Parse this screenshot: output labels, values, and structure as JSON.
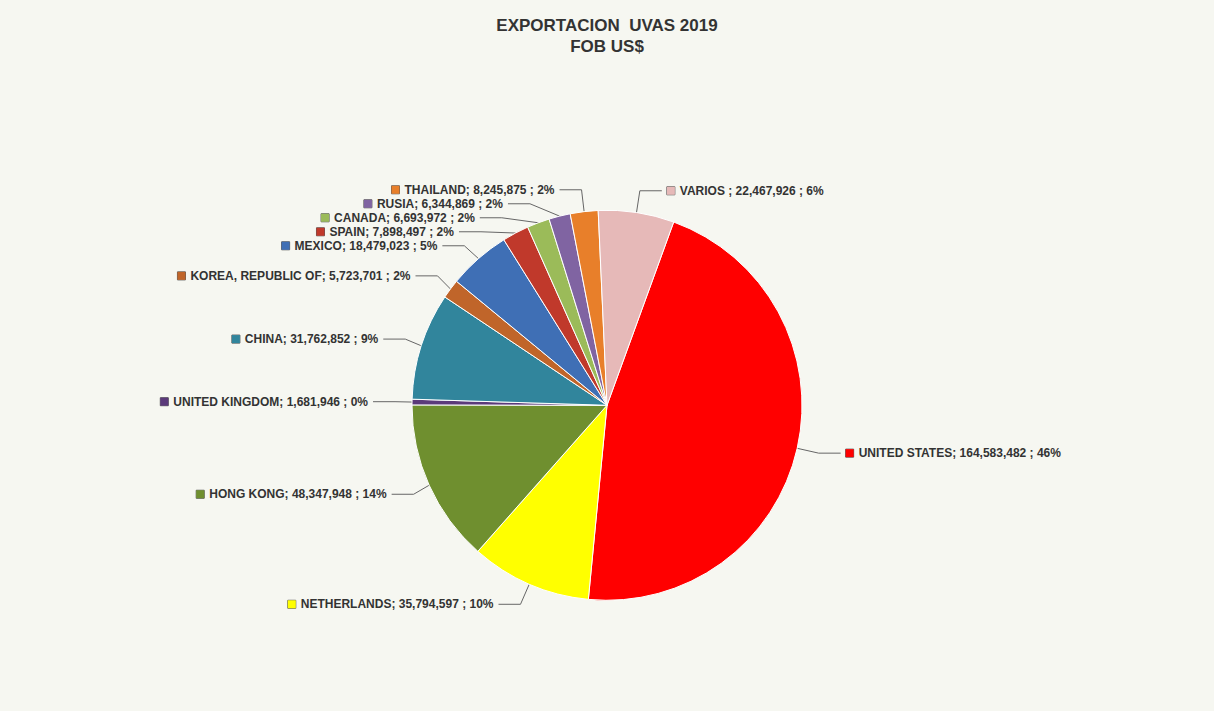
{
  "chart_data": {
    "type": "pie",
    "title": "EXPORTACION  UVAS 2019",
    "subtitle": "FOB US$",
    "categories": [
      "UNITED STATES",
      "NETHERLANDS",
      "HONG KONG",
      "UNITED KINGDOM",
      "CHINA",
      "KOREA, REPUBLIC OF",
      "MEXICO",
      "SPAIN",
      "CANADA",
      "RUSIA",
      "THAILAND",
      "VARIOS"
    ],
    "values": [
      164583482,
      35794597,
      48347948,
      1681946,
      31762852,
      5723701,
      18479023,
      7898497,
      6693972,
      6344869,
      8245875,
      22467926
    ],
    "value_labels": [
      "UNITED STATES; 164,583,482 ; 46%",
      "NETHERLANDS; 35,794,597 ; 10%",
      "HONG KONG; 48,347,948 ; 14%",
      "UNITED KINGDOM; 1,681,946 ; 0%",
      "CHINA; 31,762,852 ; 9%",
      "KOREA, REPUBLIC OF; 5,723,701 ; 2%",
      "MEXICO; 18,479,023 ; 5%",
      "SPAIN; 7,898,497 ; 2%",
      "CANADA; 6,693,972 ; 2%",
      "RUSIA; 6,344,869 ; 2%",
      "THAILAND; 8,245,875 ; 2%",
      "VARIOS ; 22,467,926 ; 6%"
    ],
    "colors": [
      "#ff0000",
      "#ffff00",
      "#6f8f2f",
      "#5b3a7a",
      "#31859c",
      "#c0652a",
      "#3f6fb5",
      "#c0392b",
      "#9bbb59",
      "#8064a2",
      "#e87f2a",
      "#e6b9b8"
    ],
    "data_labels": true
  }
}
